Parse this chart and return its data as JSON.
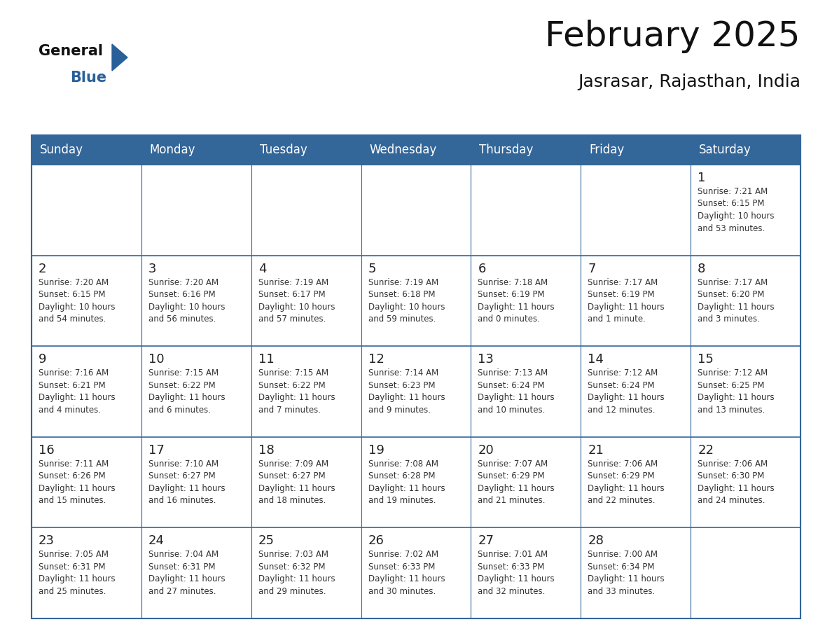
{
  "title": "February 2025",
  "subtitle": "Jasrasar, Rajasthan, India",
  "header_color": "#336699",
  "header_text_color": "#ffffff",
  "cell_bg_color": "#ffffff",
  "day_number_color": "#222222",
  "info_text_color": "#333333",
  "border_color": "#336699",
  "line_color": "#336699",
  "days_of_week": [
    "Sunday",
    "Monday",
    "Tuesday",
    "Wednesday",
    "Thursday",
    "Friday",
    "Saturday"
  ],
  "weeks": [
    [
      {
        "day": "",
        "info": ""
      },
      {
        "day": "",
        "info": ""
      },
      {
        "day": "",
        "info": ""
      },
      {
        "day": "",
        "info": ""
      },
      {
        "day": "",
        "info": ""
      },
      {
        "day": "",
        "info": ""
      },
      {
        "day": "1",
        "info": "Sunrise: 7:21 AM\nSunset: 6:15 PM\nDaylight: 10 hours\nand 53 minutes."
      }
    ],
    [
      {
        "day": "2",
        "info": "Sunrise: 7:20 AM\nSunset: 6:15 PM\nDaylight: 10 hours\nand 54 minutes."
      },
      {
        "day": "3",
        "info": "Sunrise: 7:20 AM\nSunset: 6:16 PM\nDaylight: 10 hours\nand 56 minutes."
      },
      {
        "day": "4",
        "info": "Sunrise: 7:19 AM\nSunset: 6:17 PM\nDaylight: 10 hours\nand 57 minutes."
      },
      {
        "day": "5",
        "info": "Sunrise: 7:19 AM\nSunset: 6:18 PM\nDaylight: 10 hours\nand 59 minutes."
      },
      {
        "day": "6",
        "info": "Sunrise: 7:18 AM\nSunset: 6:19 PM\nDaylight: 11 hours\nand 0 minutes."
      },
      {
        "day": "7",
        "info": "Sunrise: 7:17 AM\nSunset: 6:19 PM\nDaylight: 11 hours\nand 1 minute."
      },
      {
        "day": "8",
        "info": "Sunrise: 7:17 AM\nSunset: 6:20 PM\nDaylight: 11 hours\nand 3 minutes."
      }
    ],
    [
      {
        "day": "9",
        "info": "Sunrise: 7:16 AM\nSunset: 6:21 PM\nDaylight: 11 hours\nand 4 minutes."
      },
      {
        "day": "10",
        "info": "Sunrise: 7:15 AM\nSunset: 6:22 PM\nDaylight: 11 hours\nand 6 minutes."
      },
      {
        "day": "11",
        "info": "Sunrise: 7:15 AM\nSunset: 6:22 PM\nDaylight: 11 hours\nand 7 minutes."
      },
      {
        "day": "12",
        "info": "Sunrise: 7:14 AM\nSunset: 6:23 PM\nDaylight: 11 hours\nand 9 minutes."
      },
      {
        "day": "13",
        "info": "Sunrise: 7:13 AM\nSunset: 6:24 PM\nDaylight: 11 hours\nand 10 minutes."
      },
      {
        "day": "14",
        "info": "Sunrise: 7:12 AM\nSunset: 6:24 PM\nDaylight: 11 hours\nand 12 minutes."
      },
      {
        "day": "15",
        "info": "Sunrise: 7:12 AM\nSunset: 6:25 PM\nDaylight: 11 hours\nand 13 minutes."
      }
    ],
    [
      {
        "day": "16",
        "info": "Sunrise: 7:11 AM\nSunset: 6:26 PM\nDaylight: 11 hours\nand 15 minutes."
      },
      {
        "day": "17",
        "info": "Sunrise: 7:10 AM\nSunset: 6:27 PM\nDaylight: 11 hours\nand 16 minutes."
      },
      {
        "day": "18",
        "info": "Sunrise: 7:09 AM\nSunset: 6:27 PM\nDaylight: 11 hours\nand 18 minutes."
      },
      {
        "day": "19",
        "info": "Sunrise: 7:08 AM\nSunset: 6:28 PM\nDaylight: 11 hours\nand 19 minutes."
      },
      {
        "day": "20",
        "info": "Sunrise: 7:07 AM\nSunset: 6:29 PM\nDaylight: 11 hours\nand 21 minutes."
      },
      {
        "day": "21",
        "info": "Sunrise: 7:06 AM\nSunset: 6:29 PM\nDaylight: 11 hours\nand 22 minutes."
      },
      {
        "day": "22",
        "info": "Sunrise: 7:06 AM\nSunset: 6:30 PM\nDaylight: 11 hours\nand 24 minutes."
      }
    ],
    [
      {
        "day": "23",
        "info": "Sunrise: 7:05 AM\nSunset: 6:31 PM\nDaylight: 11 hours\nand 25 minutes."
      },
      {
        "day": "24",
        "info": "Sunrise: 7:04 AM\nSunset: 6:31 PM\nDaylight: 11 hours\nand 27 minutes."
      },
      {
        "day": "25",
        "info": "Sunrise: 7:03 AM\nSunset: 6:32 PM\nDaylight: 11 hours\nand 29 minutes."
      },
      {
        "day": "26",
        "info": "Sunrise: 7:02 AM\nSunset: 6:33 PM\nDaylight: 11 hours\nand 30 minutes."
      },
      {
        "day": "27",
        "info": "Sunrise: 7:01 AM\nSunset: 6:33 PM\nDaylight: 11 hours\nand 32 minutes."
      },
      {
        "day": "28",
        "info": "Sunrise: 7:00 AM\nSunset: 6:34 PM\nDaylight: 11 hours\nand 33 minutes."
      },
      {
        "day": "",
        "info": ""
      }
    ]
  ],
  "logo_color_general": "#111111",
  "logo_color_blue": "#2a6099",
  "logo_triangle_color": "#2a6099",
  "title_fontsize": 36,
  "subtitle_fontsize": 18,
  "header_fontsize": 12,
  "day_number_fontsize": 13,
  "info_fontsize": 8.5
}
